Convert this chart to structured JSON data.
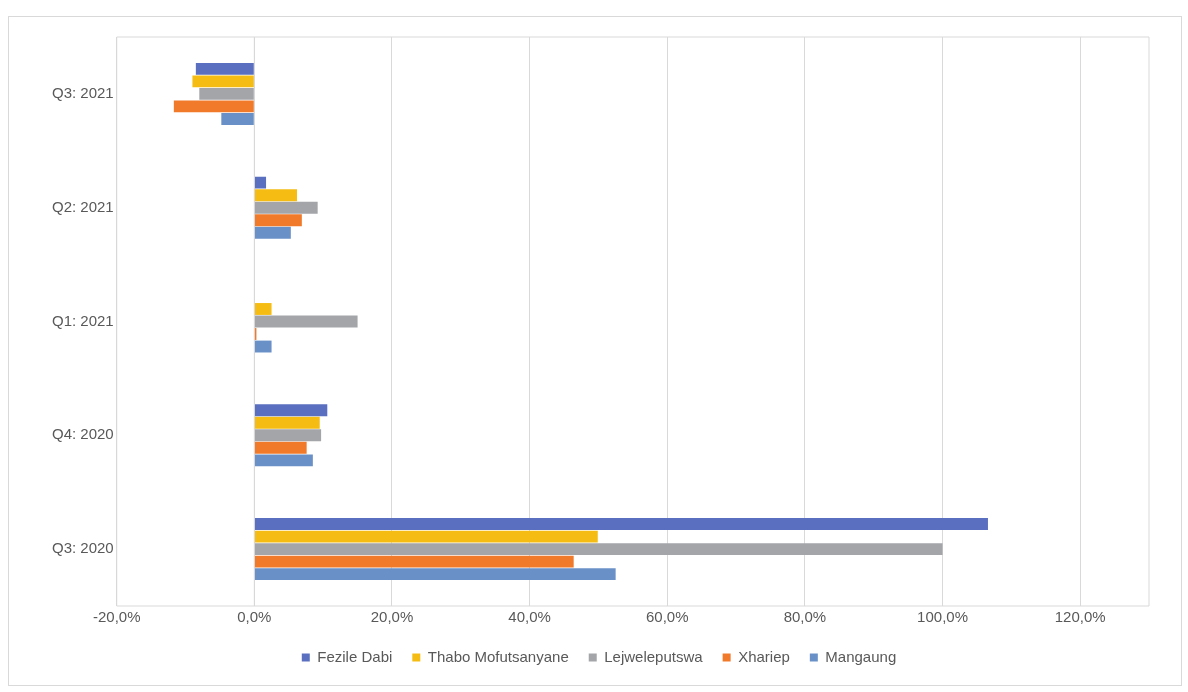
{
  "chart_data": {
    "type": "bar",
    "orientation": "horizontal",
    "categories": [
      "Q3: 2021",
      "Q2: 2021",
      "Q1: 2021",
      "Q4: 2020",
      "Q3: 2020"
    ],
    "series": [
      {
        "name": "Fezile Dabi",
        "color": "#5a6fc0",
        "values": [
          -8.5,
          1.7,
          0,
          10.6,
          106.6
        ]
      },
      {
        "name": "Thabo Mofutsanyane",
        "color": "#f5bd14",
        "values": [
          -9,
          6.2,
          2.5,
          9.5,
          49.9
        ]
      },
      {
        "name": "Lejweleputswa",
        "color": "#a3a5a8",
        "values": [
          -8,
          9.2,
          15,
          9.7,
          100
        ]
      },
      {
        "name": "Xhariep",
        "color": "#f07a2a",
        "values": [
          -11.7,
          6.9,
          0.3,
          7.6,
          46.4
        ]
      },
      {
        "name": "Mangaung",
        "color": "#6a90c8",
        "values": [
          -4.8,
          5.3,
          2.5,
          8.5,
          52.5
        ]
      }
    ],
    "xlim": [
      -20,
      130
    ],
    "xticks": [
      {
        "value": -20,
        "label": "-20,0%"
      },
      {
        "value": 0,
        "label": "0,0%"
      },
      {
        "value": 20,
        "label": "20,0%"
      },
      {
        "value": 40,
        "label": "40,0%"
      },
      {
        "value": 60,
        "label": "60,0%"
      },
      {
        "value": 80,
        "label": "80,0%"
      },
      {
        "value": 100,
        "label": "100,0%"
      },
      {
        "value": 120,
        "label": "120,0%"
      }
    ],
    "grid": "x",
    "legend": "bottom"
  }
}
